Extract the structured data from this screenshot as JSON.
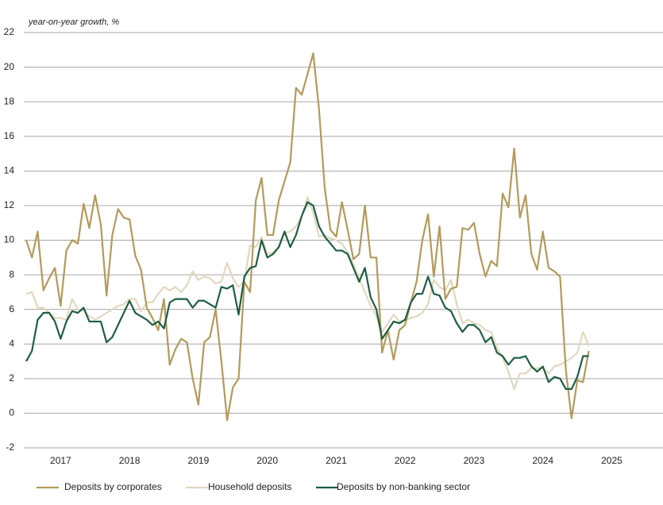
{
  "chart_data": {
    "type": "line",
    "y_axis_label": "year-on-year growth, %",
    "categories": [
      null,
      null,
      null,
      null,
      null,
      null,
      "2017",
      null,
      null,
      null,
      null,
      null,
      null,
      null,
      null,
      null,
      null,
      null,
      "2018",
      null,
      null,
      null,
      null,
      null,
      null,
      null,
      null,
      null,
      null,
      null,
      "2019",
      null,
      null,
      null,
      null,
      null,
      null,
      null,
      null,
      null,
      null,
      null,
      "2020",
      null,
      null,
      null,
      null,
      null,
      null,
      null,
      null,
      null,
      null,
      null,
      "2021",
      null,
      null,
      null,
      null,
      null,
      null,
      null,
      null,
      null,
      null,
      null,
      "2022",
      null,
      null,
      null,
      null,
      null,
      null,
      null,
      null,
      null,
      null,
      null,
      "2023",
      null,
      null,
      null,
      null,
      null,
      null,
      null,
      null,
      null,
      null,
      null,
      "2024",
      null,
      null,
      null,
      null,
      null,
      null,
      null,
      null,
      null,
      null,
      null,
      "2025",
      null,
      null,
      null,
      null,
      null
    ],
    "series": [
      {
        "name": "Deposits by corporates",
        "color": "#b39a5c",
        "values": [
          10.0,
          9.0,
          10.5,
          7.1,
          7.8,
          8.4,
          6.2,
          9.4,
          10.0,
          9.8,
          12.1,
          10.7,
          12.6,
          10.9,
          6.8,
          10.3,
          11.8,
          11.3,
          11.2,
          9.1,
          8.3,
          6.1,
          5.5,
          4.8,
          6.6,
          2.8,
          3.7,
          4.3,
          4.1,
          2.0,
          0.5,
          4.1,
          4.4,
          6.0,
          3.0,
          -0.4,
          1.5,
          2.0,
          7.6,
          7.0,
          12.3,
          13.6,
          10.3,
          10.3,
          12.3,
          13.4,
          14.5,
          18.8,
          18.4,
          19.6,
          20.8,
          17.6,
          13.0,
          10.6,
          10.2,
          12.2,
          10.6,
          8.9,
          9.2,
          12.0,
          9.0,
          9.0,
          3.5,
          4.8,
          3.1,
          4.8,
          5.1,
          6.4,
          7.6,
          10.0,
          11.5,
          7.9,
          10.8,
          6.6,
          7.2,
          7.3,
          10.7,
          10.6,
          11.0,
          9.2,
          7.9,
          8.8,
          8.5,
          12.7,
          11.9,
          15.3,
          11.3,
          12.6,
          9.2,
          8.3,
          10.5,
          8.4,
          8.2,
          7.9,
          2.5,
          -0.3,
          1.9,
          1.8,
          3.6,
          null,
          null,
          null,
          null,
          null,
          null,
          null,
          null,
          null
        ]
      },
      {
        "name": "Household deposits",
        "color": "#e2d8bf",
        "values": [
          6.9,
          7.0,
          6.1,
          6.1,
          5.8,
          5.5,
          5.5,
          5.4,
          6.6,
          6.0,
          5.9,
          5.6,
          5.4,
          5.6,
          5.8,
          6.0,
          6.2,
          6.3,
          6.6,
          6.6,
          5.9,
          6.4,
          6.4,
          6.9,
          7.3,
          7.1,
          7.3,
          7.0,
          7.4,
          8.2,
          7.7,
          7.9,
          7.8,
          7.5,
          7.6,
          8.7,
          7.8,
          7.3,
          7.6,
          9.7,
          9.6,
          10.2,
          9.2,
          9.3,
          9.6,
          10.4,
          10.5,
          10.8,
          11.4,
          12.5,
          11.6,
          10.2,
          10.3,
          10.1,
          10.0,
          9.8,
          9.3,
          8.6,
          7.8,
          7.0,
          6.2,
          5.6,
          4.7,
          5.2,
          5.7,
          5.3,
          5.4,
          5.5,
          5.6,
          5.8,
          6.3,
          7.7,
          7.3,
          7.1,
          7.7,
          6.3,
          5.2,
          5.4,
          5.2,
          5.1,
          4.8,
          4.7,
          3.8,
          3.2,
          2.4,
          1.4,
          2.3,
          2.3,
          2.6,
          2.6,
          2.6,
          2.3,
          2.7,
          2.8,
          3.0,
          3.2,
          3.5,
          4.7,
          3.9,
          null,
          null,
          null,
          null,
          null,
          null,
          null,
          null,
          null
        ]
      },
      {
        "name": "Deposits by non-banking sector",
        "color": "#1f5e42",
        "values": [
          3.0,
          3.6,
          5.4,
          5.8,
          5.8,
          5.3,
          4.3,
          5.3,
          5.9,
          5.8,
          6.1,
          5.3,
          5.3,
          5.3,
          4.1,
          4.4,
          5.1,
          5.8,
          6.5,
          5.8,
          5.6,
          5.4,
          5.1,
          5.3,
          4.9,
          6.4,
          6.6,
          6.6,
          6.6,
          6.1,
          6.5,
          6.5,
          6.3,
          6.1,
          7.3,
          7.2,
          7.4,
          5.7,
          7.9,
          8.4,
          8.5,
          10.0,
          9.0,
          9.2,
          9.6,
          10.5,
          9.6,
          10.3,
          11.4,
          12.2,
          12.0,
          10.8,
          10.2,
          9.8,
          9.4,
          9.4,
          9.2,
          8.4,
          7.6,
          8.4,
          6.7,
          6.0,
          4.3,
          4.8,
          5.3,
          5.2,
          5.4,
          6.4,
          6.9,
          6.9,
          7.9,
          6.9,
          6.8,
          6.1,
          5.9,
          5.2,
          4.7,
          5.1,
          5.1,
          4.8,
          4.1,
          4.4,
          3.5,
          3.3,
          2.8,
          3.2,
          3.2,
          3.3,
          2.7,
          2.4,
          2.7,
          1.8,
          2.1,
          2.0,
          1.4,
          1.4,
          2.1,
          3.3,
          3.3,
          null,
          null,
          null,
          null,
          null,
          null,
          null,
          null,
          null
        ]
      }
    ],
    "ylim": [
      -2,
      22
    ],
    "yticks": [
      -2,
      0,
      2,
      4,
      6,
      8,
      10,
      12,
      14,
      16,
      18,
      20,
      22
    ],
    "grid": true,
    "legend": "bottom"
  }
}
